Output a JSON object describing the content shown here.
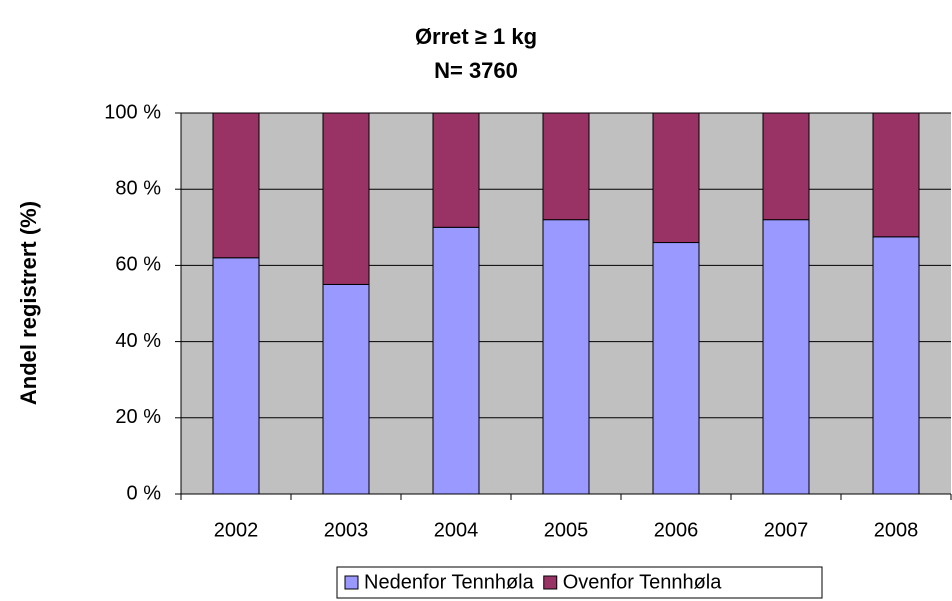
{
  "chart_data": {
    "type": "stacked_bar",
    "title": "Ørret ≥ 1 kg",
    "subtitle": "N= 3760",
    "y_label": "Andel registrert (%)",
    "categories": [
      "2002",
      "2003",
      "2004",
      "2005",
      "2006",
      "2007",
      "2008"
    ],
    "series": [
      {
        "name": "Nedenfor Tennhøla",
        "color": "#9999ff",
        "values": [
          62,
          55,
          70,
          72,
          66,
          72,
          67.5
        ]
      },
      {
        "name": "Ovenfor Tennhøla",
        "color": "#993366",
        "values": [
          38,
          45,
          30,
          28,
          34,
          28,
          32.5
        ]
      }
    ],
    "ylim": [
      0,
      100
    ],
    "yticks": [
      {
        "value": 0,
        "label": "0 %"
      },
      {
        "value": 20,
        "label": "20 %"
      },
      {
        "value": 40,
        "label": "40 %"
      },
      {
        "value": 60,
        "label": "60 %"
      },
      {
        "value": 80,
        "label": "80 %"
      },
      {
        "value": 100,
        "label": "100 %"
      }
    ],
    "grid": true,
    "background": "#c0c0c0",
    "legend": "bottom"
  }
}
